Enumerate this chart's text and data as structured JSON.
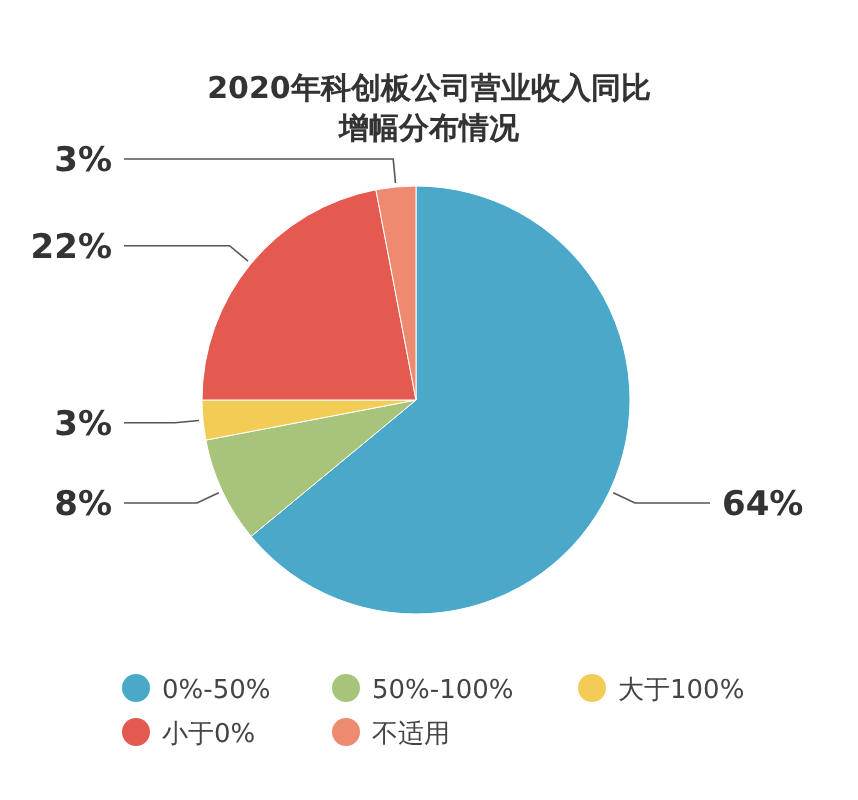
{
  "chart_data": {
    "type": "pie",
    "title": "2020年科创板公司营业收入同比增幅分布情况",
    "categories": [
      "0%-50%",
      "50%-100%",
      "大于100%",
      "小于0%",
      "不适用"
    ],
    "values": [
      64,
      8,
      3,
      22,
      3
    ],
    "value_labels": [
      "64%",
      "8%",
      "3%",
      "22%",
      "3%"
    ],
    "colors": [
      "#4aa8c8",
      "#a8c47a",
      "#f2cc55",
      "#e45a50",
      "#ee8a70"
    ],
    "legend": "bottom"
  }
}
